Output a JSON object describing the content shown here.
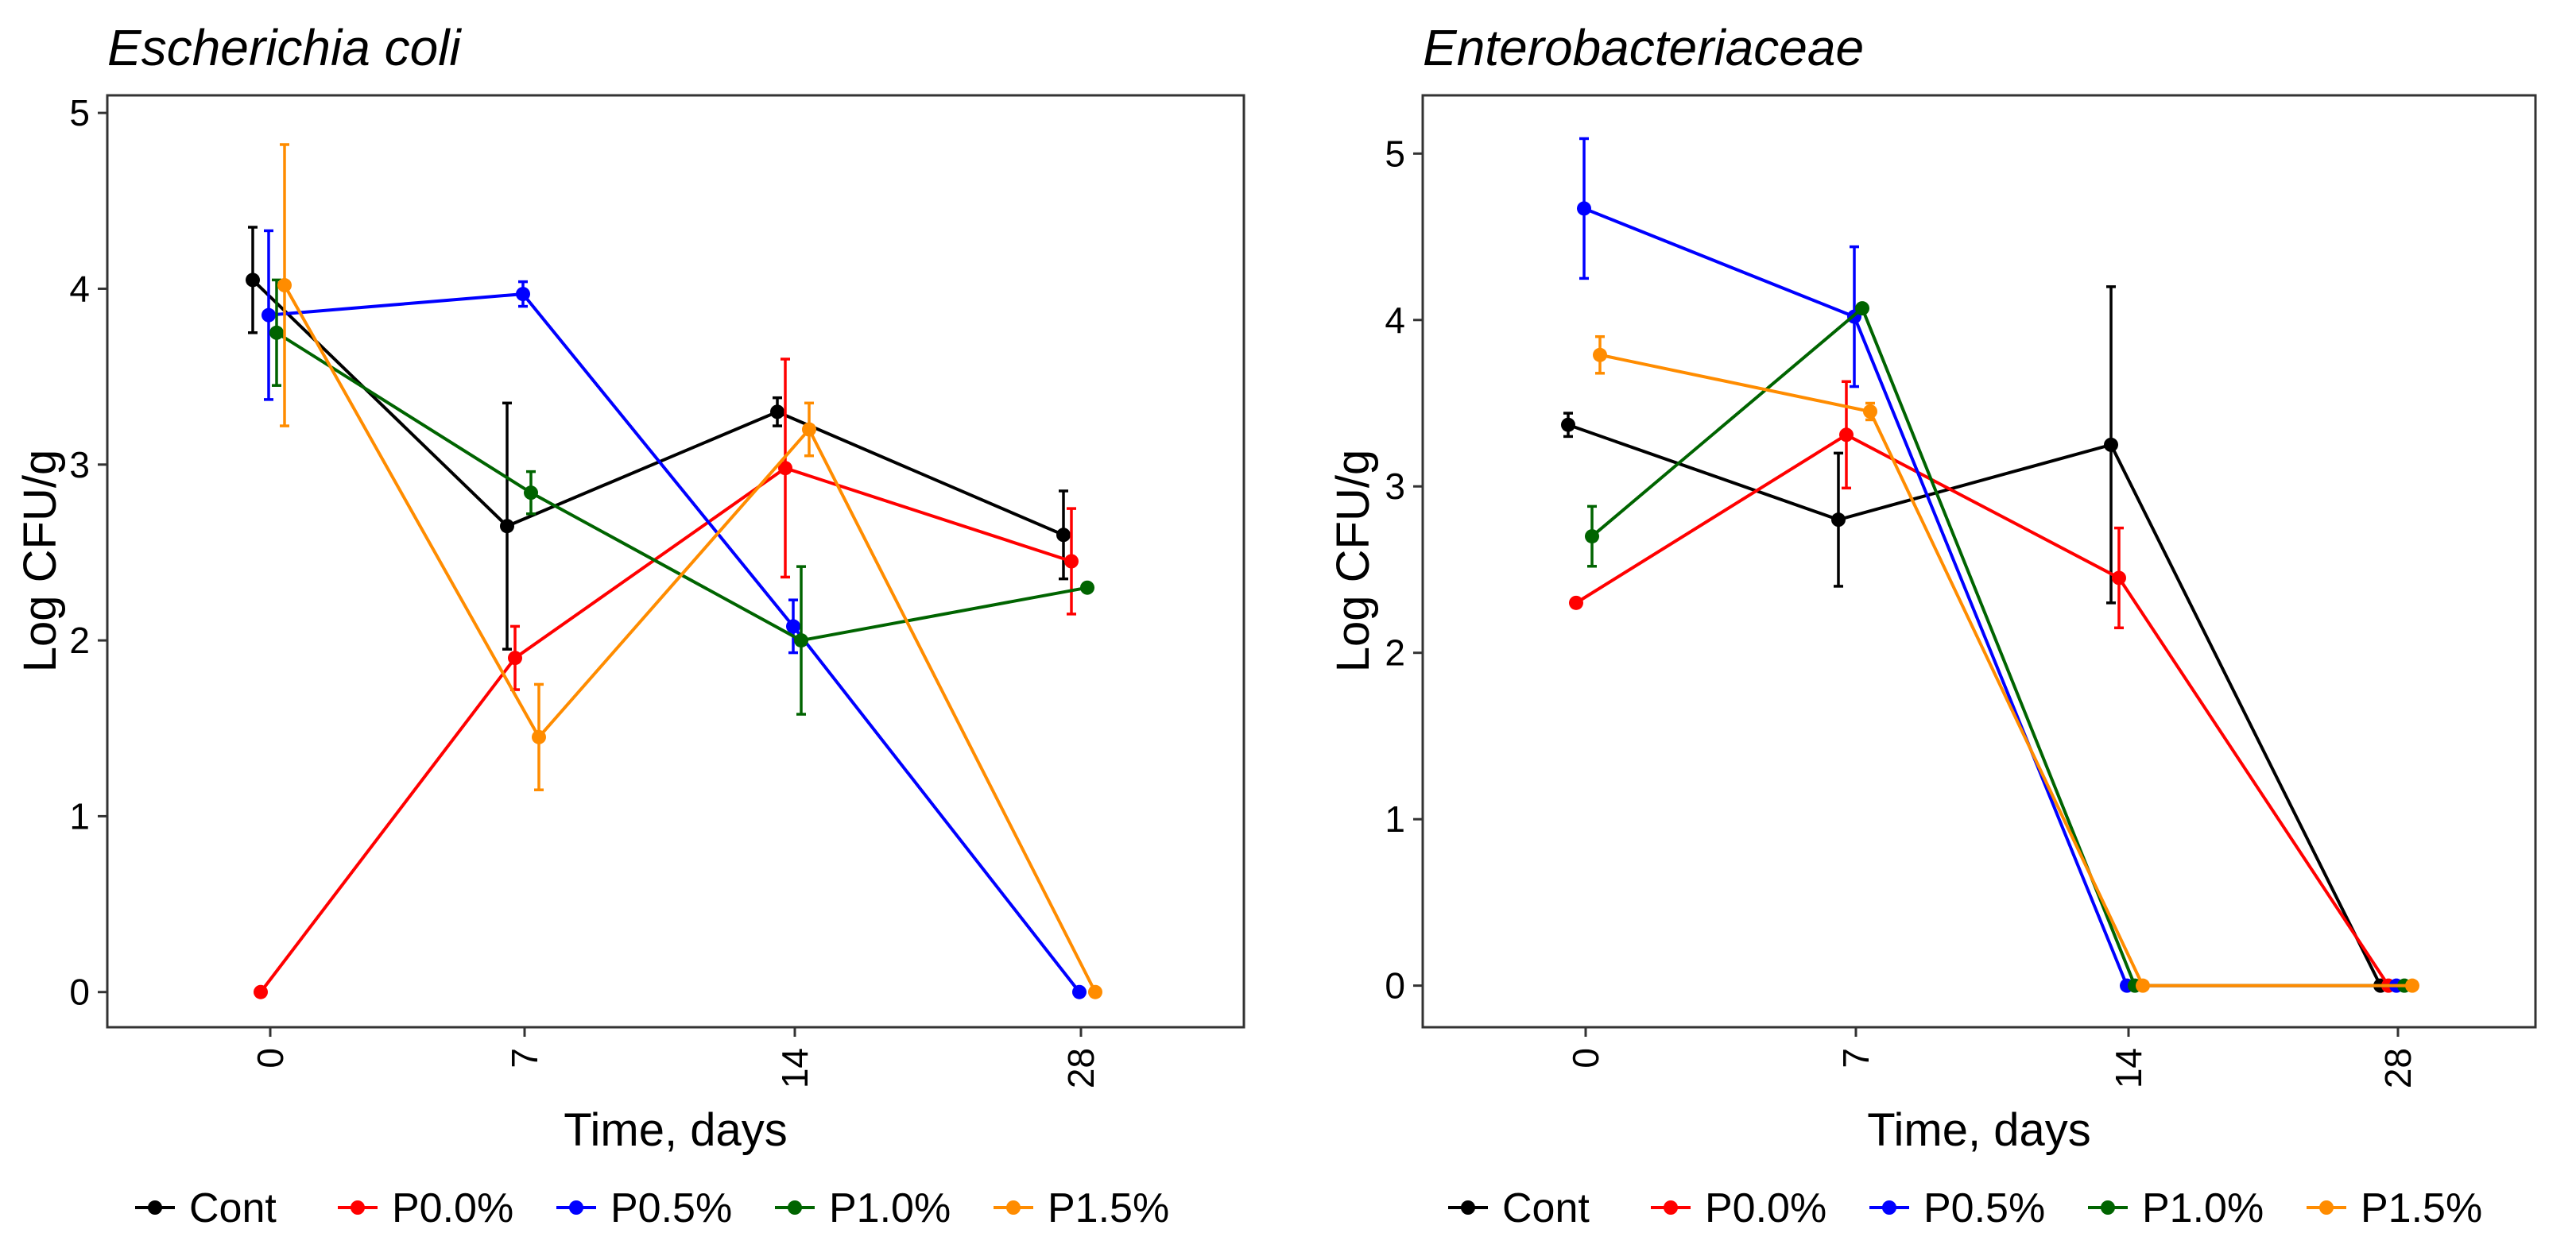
{
  "colors": {
    "Cont": "#000000",
    "P0.0%": "#ff0000",
    "P0.5%": "#0000ff",
    "P1.0%": "#006400",
    "P1.5%": "#ff8c00"
  },
  "chart_data": [
    {
      "type": "line",
      "title": "Escherichia coli",
      "xlabel": "Time, days",
      "ylabel": "Log CFU/g",
      "categories": [
        "0",
        "7",
        "14",
        "28"
      ],
      "yticks": [
        "0",
        "1",
        "2",
        "3",
        "4",
        "5"
      ],
      "ylim": [
        -0.2,
        5.1
      ],
      "series": [
        {
          "name": "Cont",
          "values": [
            4.05,
            2.65,
            3.3,
            2.6
          ],
          "errors": [
            0.3,
            0.7,
            0.08,
            0.25
          ]
        },
        {
          "name": "P0.0%",
          "values": [
            0,
            1.9,
            2.98,
            2.45
          ],
          "errors": [
            0,
            0.18,
            0.62,
            0.3
          ]
        },
        {
          "name": "P0.5%",
          "values": [
            3.85,
            3.97,
            2.08,
            0
          ],
          "errors": [
            0.48,
            0.07,
            0.15,
            0
          ]
        },
        {
          "name": "P1.0%",
          "values": [
            3.75,
            2.84,
            2.0,
            2.3
          ],
          "errors": [
            0.3,
            0.12,
            0.42,
            0
          ]
        },
        {
          "name": "P1.5%",
          "values": [
            4.02,
            1.45,
            3.2,
            0
          ],
          "errors": [
            0.8,
            0.3,
            0.15,
            0
          ]
        }
      ]
    },
    {
      "type": "line",
      "title": "Enterobacteriaceae",
      "xlabel": "Time, days",
      "ylabel": "Log CFU/g",
      "categories": [
        "0",
        "7",
        "14",
        "28"
      ],
      "yticks": [
        "0",
        "1",
        "2",
        "3",
        "4",
        "5"
      ],
      "ylim": [
        -0.25,
        5.35
      ],
      "series": [
        {
          "name": "Cont",
          "values": [
            3.37,
            2.8,
            3.25,
            0
          ],
          "errors": [
            0.07,
            0.4,
            0.95,
            0
          ]
        },
        {
          "name": "P0.0%",
          "values": [
            2.3,
            3.31,
            2.45,
            0
          ],
          "errors": [
            0,
            0.32,
            0.3,
            0
          ]
        },
        {
          "name": "P0.5%",
          "values": [
            4.67,
            4.02,
            0,
            0
          ],
          "errors": [
            0.42,
            0.42,
            0,
            0
          ]
        },
        {
          "name": "P1.0%",
          "values": [
            2.7,
            4.07,
            0,
            0
          ],
          "errors": [
            0.18,
            0,
            0,
            0
          ]
        },
        {
          "name": "P1.5%",
          "values": [
            3.79,
            3.45,
            0,
            0
          ],
          "errors": [
            0.11,
            0.05,
            0,
            0
          ]
        }
      ]
    }
  ]
}
